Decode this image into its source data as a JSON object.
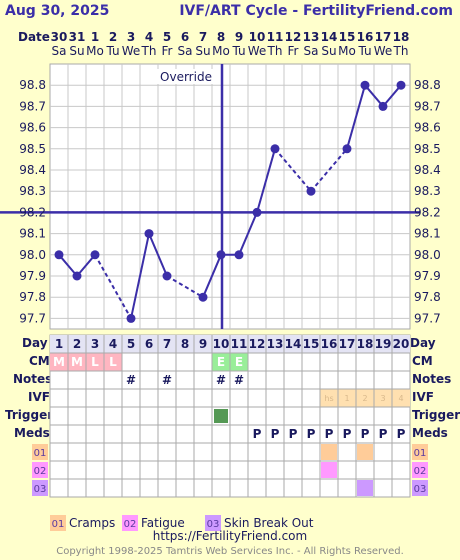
{
  "header": {
    "date": "Aug 30, 2025",
    "title": "IVF/ART Cycle - FertilityFriend.com"
  },
  "row_labels": {
    "date": "Date",
    "day": "Day",
    "cm": "CM",
    "notes": "Notes",
    "ivf": "IVF",
    "trigger": "Trigger",
    "meds": "Meds"
  },
  "override_label": "Override",
  "chart_data": {
    "type": "line",
    "x_dates": [
      "30",
      "31",
      "1",
      "2",
      "3",
      "4",
      "5",
      "6",
      "7",
      "8",
      "9",
      "10",
      "11",
      "12",
      "13",
      "14",
      "15",
      "16",
      "17",
      "18"
    ],
    "x_weekdays": [
      "Sa",
      "Su",
      "Mo",
      "Tu",
      "We",
      "Th",
      "Fr",
      "Sa",
      "Su",
      "Mo",
      "Tu",
      "We",
      "Th",
      "Fr",
      "Sa",
      "Su",
      "Mo",
      "Tu",
      "We",
      "Th"
    ],
    "x_days": [
      "1",
      "2",
      "3",
      "4",
      "5",
      "6",
      "7",
      "8",
      "9",
      "10",
      "11",
      "12",
      "13",
      "14",
      "15",
      "16",
      "17",
      "18",
      "19",
      "20"
    ],
    "y_ticks": [
      "97.7",
      "97.8",
      "97.9",
      "98.0",
      "98.1",
      "98.2",
      "98.3",
      "98.4",
      "98.5",
      "98.6",
      "98.7",
      "98.8"
    ],
    "ylim": [
      97.65,
      98.9
    ],
    "temps": [
      98.0,
      97.9,
      98.0,
      null,
      97.7,
      98.1,
      97.9,
      null,
      97.8,
      98.0,
      98.0,
      98.2,
      98.5,
      null,
      98.3,
      null,
      98.5,
      98.8,
      98.7,
      98.8
    ],
    "coverline": 98.2,
    "override_day": 10,
    "grid": true
  },
  "cm": [
    "M",
    "M",
    "L",
    "L",
    "",
    "",
    "",
    "",
    "",
    "E",
    "E",
    "",
    "",
    "",
    "",
    "",
    "",
    "",
    "",
    ""
  ],
  "notes": [
    "",
    "",
    "",
    "",
    "#",
    "",
    "#",
    "",
    "",
    "#",
    "#",
    "",
    "",
    "",
    "",
    "",
    "",
    "",
    "",
    ""
  ],
  "ivf": [
    "",
    "",
    "",
    "",
    "",
    "",
    "",
    "",
    "",
    "",
    "",
    "",
    "",
    "",
    "",
    "hs",
    "1",
    "2",
    "3",
    "4"
  ],
  "trigger": [
    false,
    false,
    false,
    false,
    false,
    false,
    false,
    false,
    false,
    true,
    false,
    false,
    false,
    false,
    false,
    false,
    false,
    false,
    false,
    false
  ],
  "meds": [
    "",
    "",
    "",
    "",
    "",
    "",
    "",
    "",
    "",
    "",
    "",
    "P",
    "P",
    "P",
    "P",
    "P",
    "P",
    "P",
    "P",
    "P"
  ],
  "symptoms": [
    {
      "code": "01",
      "name": "Cramps",
      "color": "#ffcc99",
      "days": [
        16,
        18
      ]
    },
    {
      "code": "02",
      "name": "Fatigue",
      "color": "#ff99ff",
      "days": [
        16
      ]
    },
    {
      "code": "03",
      "name": "Skin Break Out",
      "color": "#cc99ff",
      "days": [
        18
      ]
    }
  ],
  "colors": {
    "line": "#3b2ea8",
    "grid": "#c8c8c8",
    "cm_pink": "#ffb6c1",
    "cm_green": "#99ee99",
    "trigger": "#559955",
    "ivf": "#ffe0b0"
  },
  "footer": {
    "url": "https://FertilityFriend.com",
    "copyright": "Copyright 1998-2025 Tamtris Web Services Inc. - All Rights Reserved."
  }
}
